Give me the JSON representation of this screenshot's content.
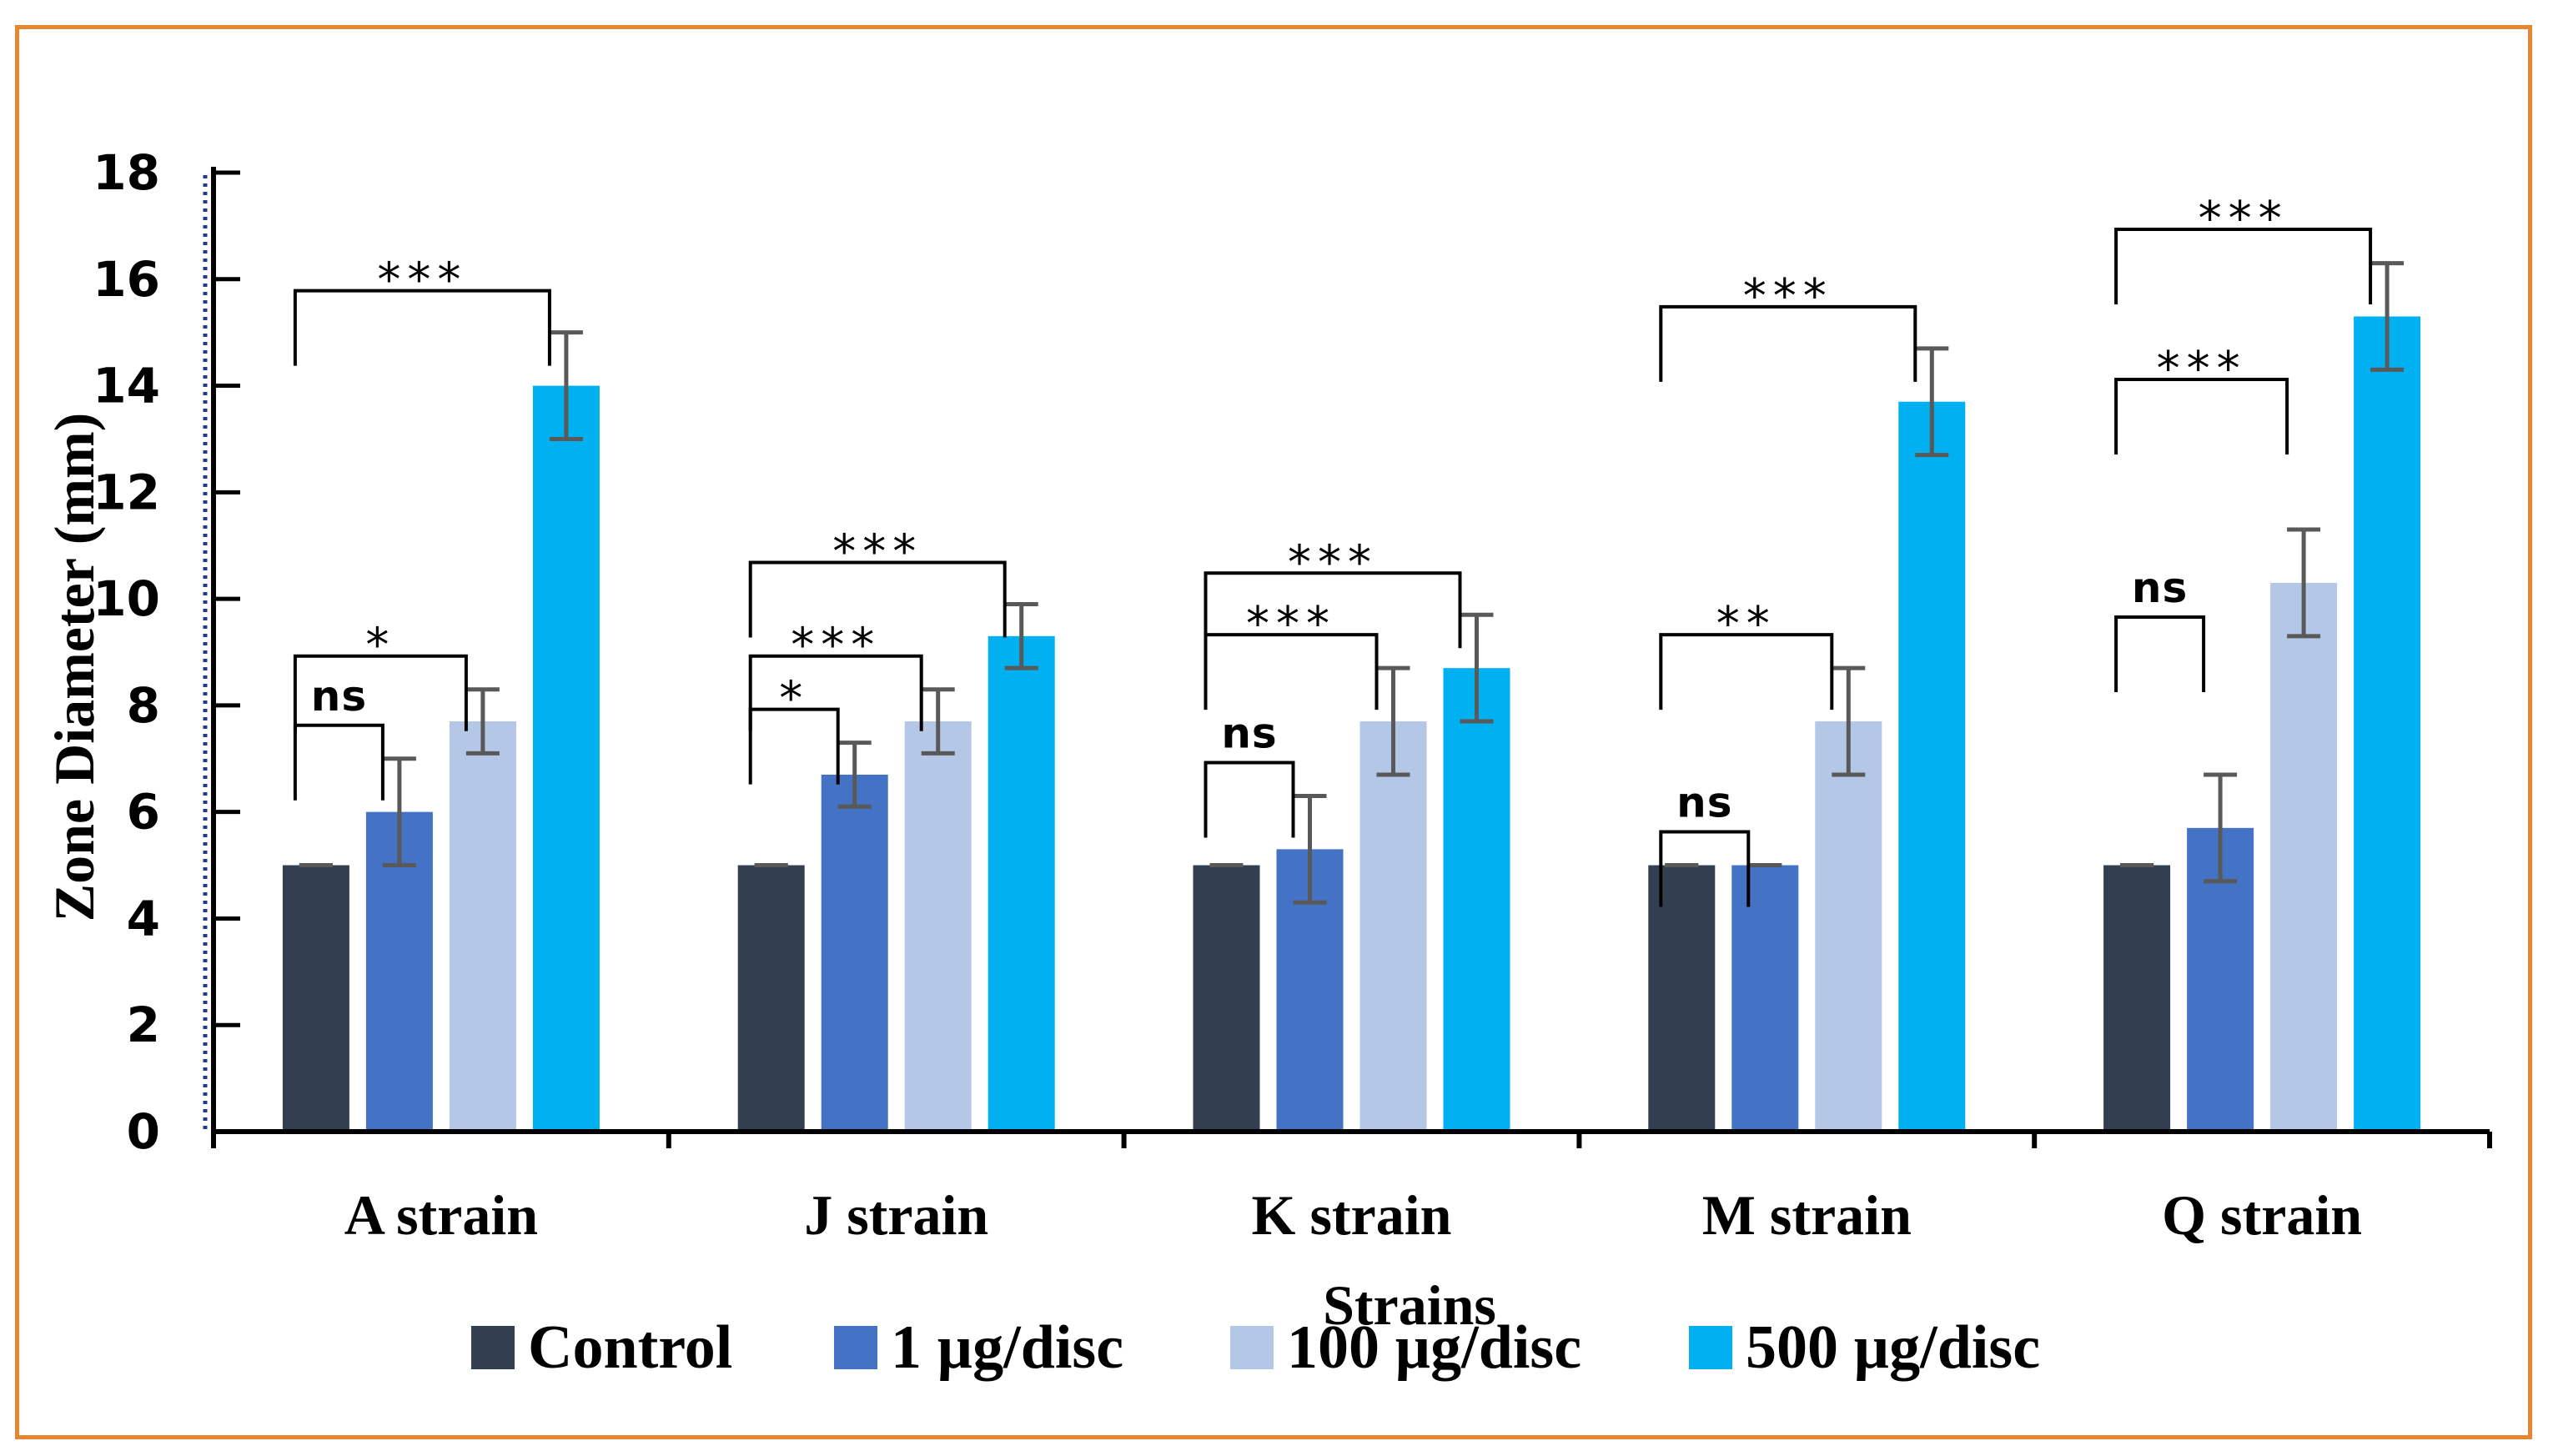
{
  "chart_data": {
    "type": "bar",
    "title": "",
    "xlabel": "Strains",
    "ylabel": "Zone Diameter (mm)",
    "ylim": [
      0,
      18
    ],
    "yticks": [
      "0",
      "2",
      "4",
      "6",
      "8",
      "10",
      "12",
      "14",
      "16",
      "18"
    ],
    "categories": [
      "A strain",
      "J strain",
      "K strain",
      "M strain",
      "Q strain"
    ],
    "series": [
      {
        "name": "Control",
        "color": "#333F50",
        "values": [
          5,
          5,
          5,
          5,
          5
        ],
        "errors": [
          0,
          0,
          0,
          0,
          0
        ]
      },
      {
        "name": "1 µg/disc",
        "color": "#4472C4",
        "values": [
          6,
          6.7,
          5.3,
          5,
          5.7
        ],
        "errors": [
          1,
          0.6,
          1,
          0,
          1
        ]
      },
      {
        "name": "100 µg/disc",
        "color": "#B4C7E7",
        "values": [
          7.7,
          7.7,
          7.7,
          7.7,
          10.3
        ],
        "errors": [
          0.6,
          0.6,
          1,
          1,
          1
        ]
      },
      {
        "name": "500 µg/disc",
        "color": "#00B0F0",
        "values": [
          14,
          9.3,
          8.7,
          13.7,
          15.3
        ],
        "errors": [
          1,
          0.6,
          1,
          1,
          1
        ]
      }
    ],
    "legend_position": "bottom",
    "significance": [
      {
        "category": 0,
        "from": 0,
        "to": 1,
        "label": "ns"
      },
      {
        "category": 0,
        "from": 0,
        "to": 2,
        "label": "*"
      },
      {
        "category": 0,
        "from": 0,
        "to": 3,
        "label": "***"
      },
      {
        "category": 1,
        "from": 0,
        "to": 1,
        "label": "*"
      },
      {
        "category": 1,
        "from": 0,
        "to": 2,
        "label": "***"
      },
      {
        "category": 1,
        "from": 0,
        "to": 3,
        "label": "***"
      },
      {
        "category": 2,
        "from": 0,
        "to": 1,
        "label": "ns"
      },
      {
        "category": 2,
        "from": 0,
        "to": 2,
        "label": "***"
      },
      {
        "category": 2,
        "from": 0,
        "to": 3,
        "label": "***"
      },
      {
        "category": 3,
        "from": 0,
        "to": 1,
        "label": "ns"
      },
      {
        "category": 3,
        "from": 0,
        "to": 2,
        "label": "**"
      },
      {
        "category": 3,
        "from": 0,
        "to": 3,
        "label": "***"
      },
      {
        "category": 4,
        "from": 0,
        "to": 1,
        "label": "ns"
      },
      {
        "category": 4,
        "from": 0,
        "to": 2,
        "label": "***"
      },
      {
        "category": 4,
        "from": 0,
        "to": 3,
        "label": "***"
      }
    ]
  },
  "colors": {
    "frame": "#E8852F",
    "error_bar": "#595959"
  }
}
